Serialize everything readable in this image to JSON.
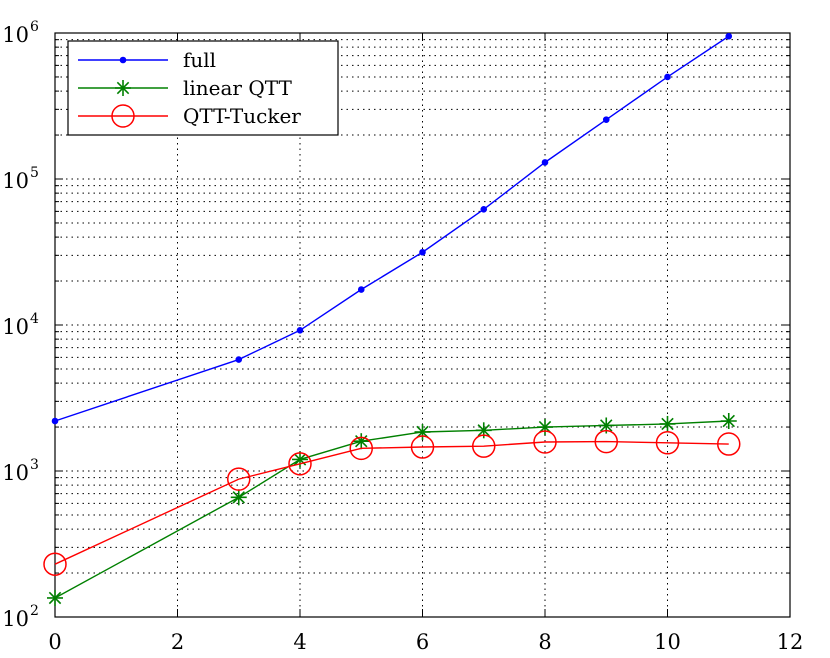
{
  "chart_data": {
    "type": "line",
    "title": "",
    "xlabel": "",
    "ylabel": "",
    "xlim": [
      0,
      12
    ],
    "ylim": [
      100,
      1000000
    ],
    "yscale": "log",
    "grid": true,
    "grid_style": "dotted",
    "legend_position": "top-left",
    "x_ticks": [
      "0",
      "2",
      "4",
      "6",
      "8",
      "10",
      "12"
    ],
    "x_tick_values": [
      0,
      2,
      4,
      6,
      8,
      10,
      12
    ],
    "y_ticks": [
      {
        "value": 100,
        "base": "10",
        "exp": "2"
      },
      {
        "value": 1000,
        "base": "10",
        "exp": "3"
      },
      {
        "value": 10000,
        "base": "10",
        "exp": "4"
      },
      {
        "value": 100000,
        "base": "10",
        "exp": "5"
      },
      {
        "value": 1000000,
        "base": "10",
        "exp": "6"
      }
    ],
    "series": [
      {
        "name": "full",
        "color": "#0000ff",
        "marker": "dot",
        "x": [
          0,
          3,
          4,
          5,
          6,
          7,
          8,
          9,
          10,
          11
        ],
        "y": [
          2200,
          5800,
          9200,
          17500,
          31500,
          62000,
          130000,
          255000,
          500000,
          950000
        ]
      },
      {
        "name": "linear QTT",
        "color": "#008000",
        "marker": "star",
        "x": [
          0,
          3,
          4,
          5,
          6,
          7,
          8,
          9,
          10,
          11
        ],
        "y": [
          135,
          660,
          1200,
          1600,
          1850,
          1900,
          2000,
          2050,
          2100,
          2200
        ]
      },
      {
        "name": "QTT-Tucker",
        "color": "#ff0000",
        "marker": "circle",
        "x": [
          0,
          3,
          4,
          5,
          6,
          7,
          8,
          9,
          10,
          11
        ],
        "y": [
          230,
          880,
          1120,
          1430,
          1460,
          1480,
          1580,
          1590,
          1560,
          1530
        ]
      }
    ]
  }
}
